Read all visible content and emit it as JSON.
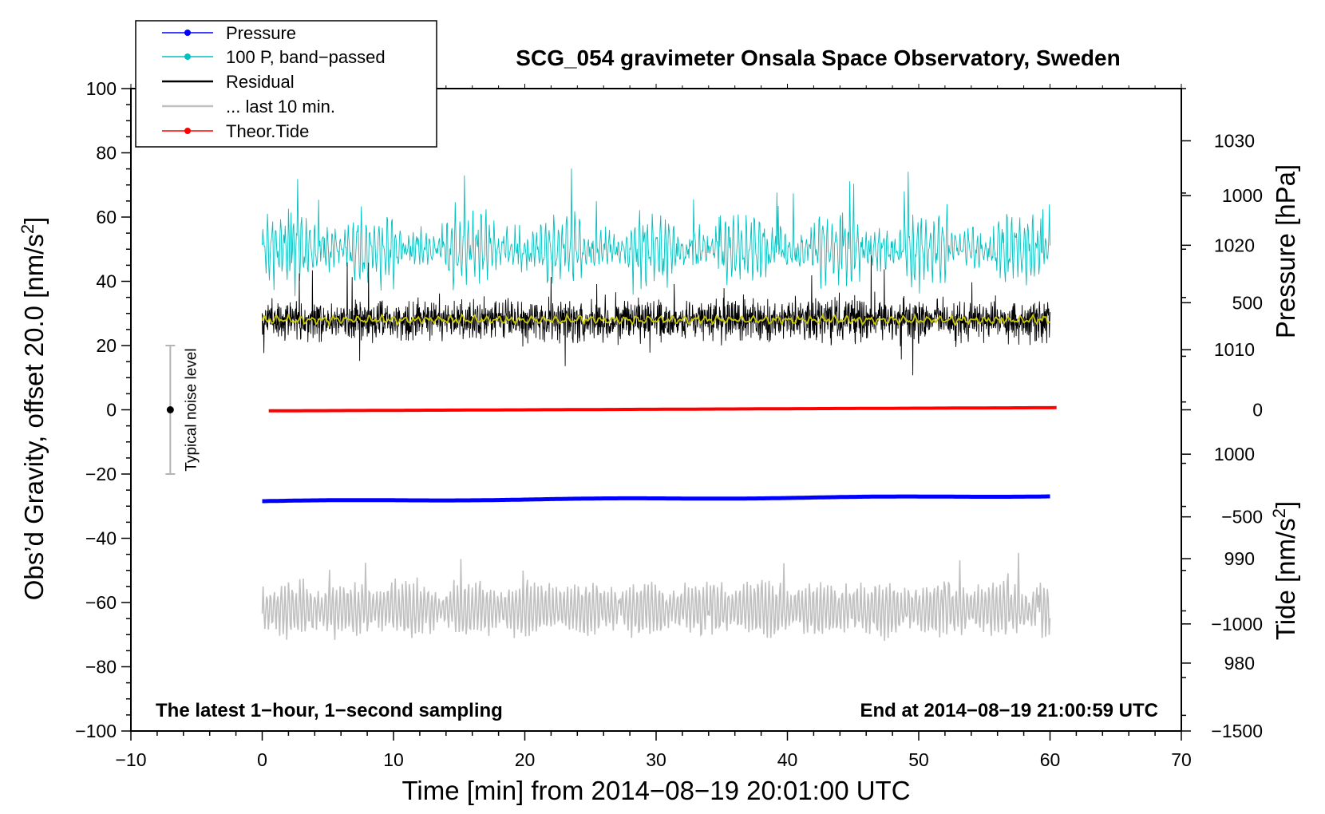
{
  "chart_data": {
    "type": "line",
    "title": "SCG_054 gravimeter Onsala Space Observatory, Sweden",
    "xlabel": "Time [min] from 2014−08−19 20:01:00 UTC",
    "ylabel_left": "Obs’d Gravity, offset 20.0 [nm/s",
    "ylabel_left_sup": "2",
    "ylabel_left_end": "]",
    "ylabel_right_pressure": "Pressure [hPa]",
    "ylabel_right_tide": "Tide [nm/s",
    "ylabel_right_tide_sup": "2",
    "ylabel_right_tide_end": "]",
    "xlim": [
      -10,
      70
    ],
    "ylim": [
      -100,
      100
    ],
    "pressure_lim": [
      973.5,
      1035
    ],
    "tide_lim": [
      -1500,
      1500
    ],
    "x_ticks": [
      {
        "value": -10,
        "label": "−10"
      },
      {
        "value": 0,
        "label": "0"
      },
      {
        "value": 10,
        "label": "10"
      },
      {
        "value": 20,
        "label": "20"
      },
      {
        "value": 30,
        "label": "30"
      },
      {
        "value": 40,
        "label": "40"
      },
      {
        "value": 50,
        "label": "50"
      },
      {
        "value": 60,
        "label": "60"
      },
      {
        "value": 70,
        "label": "70"
      }
    ],
    "y_ticks": [
      {
        "value": 100,
        "label": "100"
      },
      {
        "value": 80,
        "label": "80"
      },
      {
        "value": 60,
        "label": "60"
      },
      {
        "value": 40,
        "label": "40"
      },
      {
        "value": 20,
        "label": "20"
      },
      {
        "value": 0,
        "label": "0"
      },
      {
        "value": -20,
        "label": "−20"
      },
      {
        "value": -40,
        "label": "−40"
      },
      {
        "value": -60,
        "label": "−60"
      },
      {
        "value": -80,
        "label": "−80"
      },
      {
        "value": -100,
        "label": "−100"
      }
    ],
    "pressure_ticks": [
      {
        "value": 1030,
        "label": "1030"
      },
      {
        "value": 1020,
        "label": "1020"
      },
      {
        "value": 1010,
        "label": "1010"
      },
      {
        "value": 1000,
        "label": "1000"
      },
      {
        "value": 990,
        "label": "990"
      },
      {
        "value": 980,
        "label": "980"
      }
    ],
    "tide_ticks": [
      {
        "value": 1000,
        "label": "1000"
      },
      {
        "value": 500,
        "label": "500"
      },
      {
        "value": 0,
        "label": "0"
      },
      {
        "value": -500,
        "label": "−500"
      },
      {
        "value": -1000,
        "label": "−1000"
      },
      {
        "value": -1500,
        "label": "−1500"
      }
    ],
    "series": [
      {
        "name": "Pressure",
        "color": "#0000ff",
        "unit": "hPa",
        "start": 995.5,
        "end": 996.0
      },
      {
        "name": "100 P, band−passed",
        "color": "#00c0c0",
        "center_gravity": 50,
        "amplitude": 12
      },
      {
        "name": "Residual",
        "color": "#000000",
        "center_gravity": 28,
        "amplitude": 8
      },
      {
        "name": "... last 10 min.",
        "color": "#c0c0c0",
        "center_gravity": -62,
        "amplitude": 6
      },
      {
        "name": "Theor.Tide",
        "color": "#ff0000",
        "unit": "nm/s2",
        "start": -5,
        "end": 10
      }
    ],
    "smoothed_residual": {
      "color": "#c8c800",
      "center_gravity": 28
    },
    "time_range": [
      0,
      60
    ],
    "noise_level": {
      "label": "Typical noise level",
      "x": -7,
      "center": 0,
      "low": -20,
      "high": 20
    },
    "note_left": "The latest 1−hour, 1−second sampling",
    "note_right": "End at 2014−08−19 21:00:59 UTC"
  }
}
